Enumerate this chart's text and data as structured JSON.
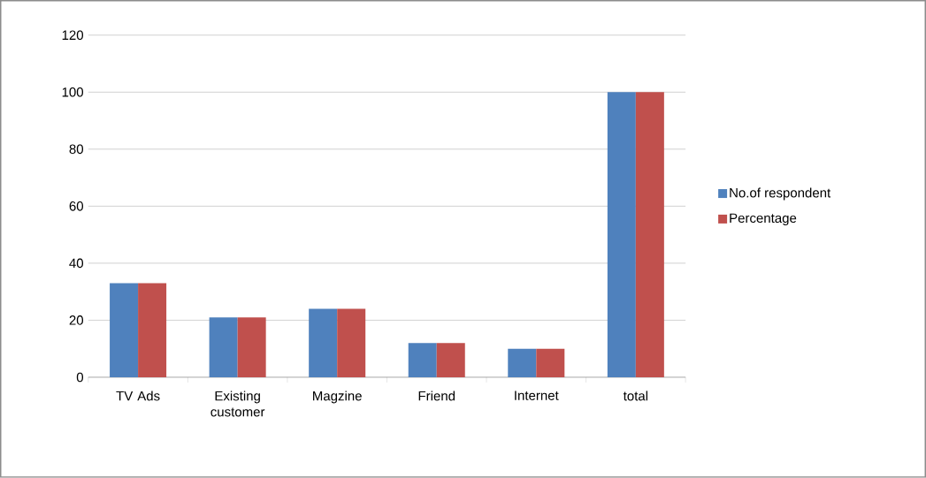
{
  "chart_data": {
    "type": "bar",
    "categories": [
      "TV Ads",
      "Existing customer",
      "Magzine",
      "Friend",
      "Internet",
      "total"
    ],
    "series": [
      {
        "name": "No.of respondent",
        "color": "#4f81bd",
        "values": [
          33,
          21,
          24,
          12,
          10,
          100
        ]
      },
      {
        "name": "Percentage",
        "color": "#c0504d",
        "values": [
          33,
          21,
          24,
          12,
          10,
          100
        ]
      }
    ],
    "ylim": [
      0,
      120
    ],
    "yticks": [
      0,
      20,
      40,
      60,
      80,
      100,
      120
    ],
    "grid": "y",
    "legend": "right"
  }
}
